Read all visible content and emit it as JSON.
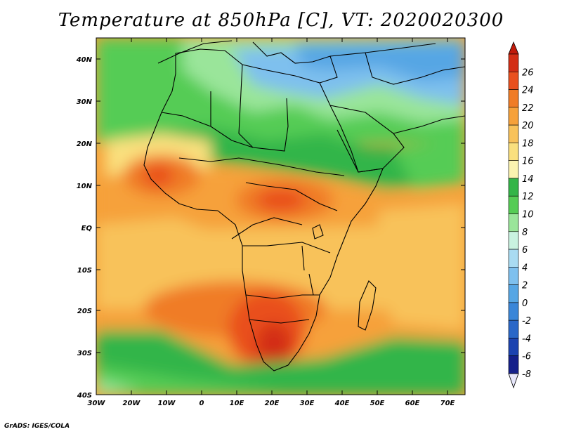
{
  "title": "Temperature at 850hPa [C], VT: 2020020300",
  "credit": "GrADS: IGES/COLA",
  "map": {
    "lat_labels": [
      "40N",
      "30N",
      "20N",
      "10N",
      "EQ",
      "10S",
      "20S",
      "30S",
      "40S"
    ],
    "lon_labels": [
      "30W",
      "20W",
      "10W",
      "0",
      "10E",
      "20E",
      "30E",
      "40E",
      "50E",
      "60E",
      "70E"
    ]
  },
  "colorbar": {
    "labels": [
      "26",
      "24",
      "22",
      "20",
      "18",
      "16",
      "14",
      "12",
      "10",
      "8",
      "6",
      "4",
      "2",
      "0",
      "-2",
      "-4",
      "-6",
      "-8"
    ],
    "colors": [
      "#d32d14",
      "#e9501e",
      "#f07c26",
      "#f6a13a",
      "#f8c25a",
      "#fae07e",
      "#fbf3b0",
      "#33b548",
      "#55cc55",
      "#9ae59a",
      "#c9f2e0",
      "#a9dbf2",
      "#7ec0ee",
      "#56a6e4",
      "#3a86d8",
      "#2a67c8",
      "#1c43b0",
      "#15208a"
    ],
    "over_color": "#c01a0a",
    "under_color": "#e6e6fa"
  }
}
